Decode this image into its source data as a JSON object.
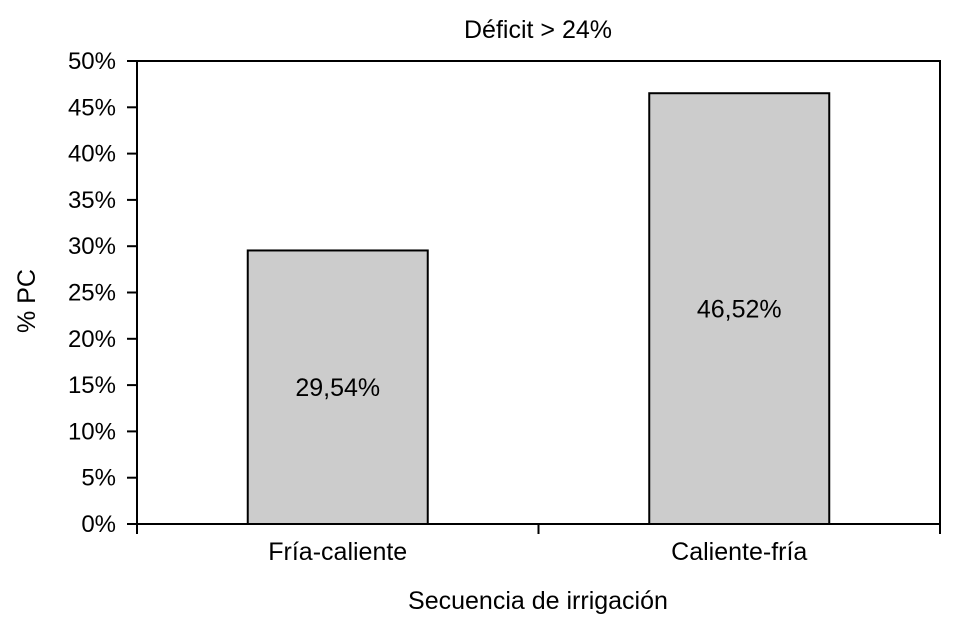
{
  "chart_data": {
    "type": "bar",
    "title": "Déficit > 24%",
    "xlabel": "Secuencia de irrigación",
    "ylabel": "% PC",
    "categories": [
      "Fría-caliente",
      "Caliente-fría"
    ],
    "values": [
      29.54,
      46.52
    ],
    "data_labels": [
      "29,54%",
      "46,52%"
    ],
    "ylim": [
      0,
      50
    ],
    "yticks": [
      0,
      5,
      10,
      15,
      20,
      25,
      30,
      35,
      40,
      45,
      50
    ],
    "ytick_labels": [
      "0%",
      "5%",
      "10%",
      "15%",
      "20%",
      "25%",
      "30%",
      "35%",
      "40%",
      "45%",
      "50%"
    ],
    "grid": false,
    "legend": "none",
    "bar_color": "#cccccc"
  }
}
